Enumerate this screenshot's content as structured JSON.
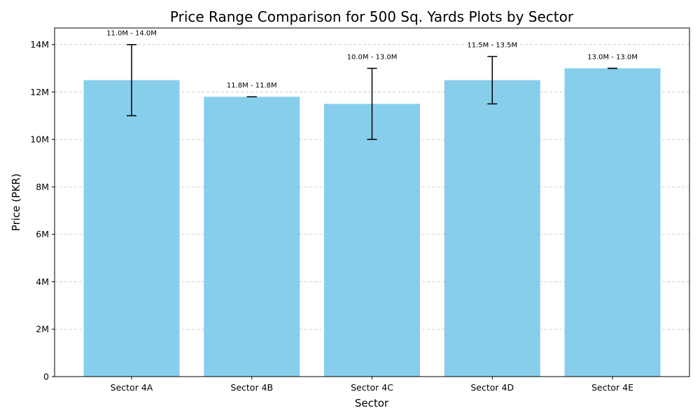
{
  "chart_data": {
    "type": "bar",
    "title": "Price Range Comparison for 500 Sq. Yards Plots by Sector",
    "xlabel": "Sector",
    "ylabel": "Price (PKR)",
    "categories": [
      "Sector 4A",
      "Sector 4B",
      "Sector 4C",
      "Sector 4D",
      "Sector 4E"
    ],
    "values": [
      12500000,
      11800000,
      11500000,
      12500000,
      13000000
    ],
    "range_min": [
      11000000,
      11800000,
      10000000,
      11500000,
      13000000
    ],
    "range_max": [
      14000000,
      11800000,
      13000000,
      13500000,
      13000000
    ],
    "data_labels": [
      "11.0M - 14.0M",
      "11.8M - 11.8M",
      "10.0M - 13.0M",
      "11.5M - 13.5M",
      "13.0M - 13.0M"
    ],
    "ylim": [
      0,
      14700000
    ],
    "yticks": [
      0,
      2000000,
      4000000,
      6000000,
      8000000,
      10000000,
      12000000,
      14000000
    ],
    "ytick_labels": [
      "0",
      "2M",
      "4M",
      "6M",
      "8M",
      "10M",
      "12M",
      "14M"
    ],
    "grid": "horizontal dashed",
    "bar_color": "#87ceeb",
    "errorbar_color": "#000000",
    "grid_color": "#c0c0c0"
  }
}
